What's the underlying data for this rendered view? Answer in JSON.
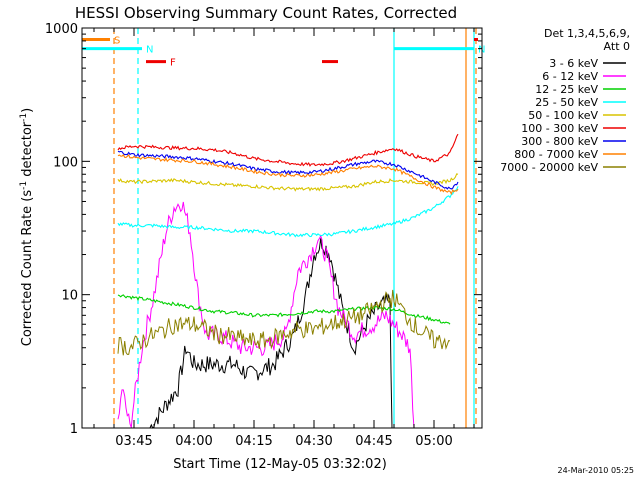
{
  "title": "HESSI Observing Summary Count Rates, Corrected",
  "footer_date": "24-Mar-2010 05:25",
  "chart_data": {
    "type": "line",
    "title": "HESSI Observing Summary Count Rates, Corrected",
    "xlabel": "Start Time (12-May-05 03:32:02)",
    "ylabel_pre": "Corrected Count Rate (s",
    "ylabel_mid": " detector",
    "ylabel_post": ")",
    "ylabel_exp": "-1",
    "yscale": "log",
    "ylim": [
      1,
      1000
    ],
    "xlim": [
      "03:32",
      "05:12"
    ],
    "x_ticks": [
      "03:45",
      "04:00",
      "04:15",
      "04:30",
      "04:45",
      "05:00"
    ],
    "y_ticks": [
      "1",
      "10",
      "100",
      "1000"
    ],
    "legend_header": [
      "Det 1,3,4,5,6,9,",
      "Att 0"
    ],
    "series": [
      {
        "name": "3 - 6 keV",
        "color": "#000000",
        "points": [
          [
            "03:49",
            1
          ],
          [
            "03:53",
            1.5
          ],
          [
            "03:56",
            2
          ],
          [
            "03:58",
            4
          ],
          [
            "04:00",
            3
          ],
          [
            "04:02",
            3
          ],
          [
            "04:05",
            3
          ],
          [
            "04:10",
            3
          ],
          [
            "04:14",
            2.5
          ],
          [
            "04:20",
            3
          ],
          [
            "04:25",
            5
          ],
          [
            "04:28",
            10
          ],
          [
            "04:30",
            20
          ],
          [
            "04:32",
            25
          ],
          [
            "04:34",
            20
          ],
          [
            "04:37",
            8
          ],
          [
            "04:40",
            4
          ],
          [
            "04:43",
            6
          ],
          [
            "04:46",
            8
          ],
          [
            "04:49",
            9
          ],
          [
            "04:49.5",
            1
          ]
        ]
      },
      {
        "name": "6 - 12 keV",
        "color": "#ff00ff",
        "points": [
          [
            "03:41",
            1
          ],
          [
            "03:42",
            2
          ],
          [
            "03:44",
            1
          ],
          [
            "03:47",
            4
          ],
          [
            "03:50",
            10
          ],
          [
            "03:53",
            30
          ],
          [
            "03:55",
            45
          ],
          [
            "03:57",
            50
          ],
          [
            "03:59",
            30
          ],
          [
            "04:01",
            10
          ],
          [
            "04:03",
            5
          ],
          [
            "04:06",
            5
          ],
          [
            "04:12",
            4
          ],
          [
            "04:18",
            4
          ],
          [
            "04:23",
            5
          ],
          [
            "04:26",
            15
          ],
          [
            "04:29",
            20
          ],
          [
            "04:31",
            26
          ],
          [
            "04:33",
            20
          ],
          [
            "04:36",
            8
          ],
          [
            "04:40",
            5
          ],
          [
            "04:45",
            6
          ],
          [
            "04:48",
            7
          ],
          [
            "04:52",
            5
          ],
          [
            "04:54",
            4
          ],
          [
            "04:55",
            1
          ]
        ]
      },
      {
        "name": "12 - 25 keV",
        "color": "#00d000",
        "points": [
          [
            "03:41",
            10
          ],
          [
            "03:45",
            9.5
          ],
          [
            "03:50",
            9
          ],
          [
            "03:55",
            8.5
          ],
          [
            "04:00",
            8
          ],
          [
            "04:05",
            7.5
          ],
          [
            "04:10",
            7.3
          ],
          [
            "04:15",
            7
          ],
          [
            "04:20",
            7
          ],
          [
            "04:25",
            7.2
          ],
          [
            "04:30",
            7.5
          ],
          [
            "04:35",
            7.5
          ],
          [
            "04:40",
            7.8
          ],
          [
            "04:45",
            8
          ],
          [
            "04:50",
            7.8
          ],
          [
            "04:55",
            7
          ],
          [
            "05:00",
            6.5
          ],
          [
            "05:04",
            6
          ]
        ]
      },
      {
        "name": "25 - 50 keV",
        "color": "#00ffff",
        "points": [
          [
            "03:41",
            34
          ],
          [
            "03:45",
            33
          ],
          [
            "03:50",
            33
          ],
          [
            "03:55",
            32
          ],
          [
            "04:00",
            32
          ],
          [
            "04:05",
            31
          ],
          [
            "04:10",
            30
          ],
          [
            "04:15",
            30
          ],
          [
            "04:20",
            29
          ],
          [
            "04:25",
            28
          ],
          [
            "04:30",
            28
          ],
          [
            "04:35",
            28.5
          ],
          [
            "04:40",
            30
          ],
          [
            "04:45",
            32
          ],
          [
            "04:50",
            34
          ],
          [
            "04:55",
            38
          ],
          [
            "05:00",
            45
          ],
          [
            "05:04",
            55
          ],
          [
            "05:06",
            65
          ]
        ]
      },
      {
        "name": "50 - 100 keV",
        "color": "#d8c400",
        "points": [
          [
            "03:41",
            72
          ],
          [
            "03:45",
            70
          ],
          [
            "03:50",
            71
          ],
          [
            "03:55",
            72
          ],
          [
            "04:00",
            70
          ],
          [
            "04:05",
            68
          ],
          [
            "04:10",
            66
          ],
          [
            "04:15",
            65
          ],
          [
            "04:20",
            63
          ],
          [
            "04:25",
            62
          ],
          [
            "04:30",
            62
          ],
          [
            "04:35",
            63
          ],
          [
            "04:40",
            65
          ],
          [
            "04:45",
            70
          ],
          [
            "04:50",
            72
          ],
          [
            "04:55",
            70
          ],
          [
            "05:00",
            68
          ],
          [
            "05:04",
            72
          ],
          [
            "05:06",
            80
          ]
        ]
      },
      {
        "name": "100 - 300 keV",
        "color": "#ee0000",
        "points": [
          [
            "03:41",
            125
          ],
          [
            "03:45",
            130
          ],
          [
            "03:50",
            128
          ],
          [
            "03:55",
            126
          ],
          [
            "04:00",
            125
          ],
          [
            "04:05",
            122
          ],
          [
            "04:10",
            115
          ],
          [
            "04:15",
            105
          ],
          [
            "04:20",
            100
          ],
          [
            "04:25",
            96
          ],
          [
            "04:30",
            94
          ],
          [
            "04:35",
            97
          ],
          [
            "04:40",
            105
          ],
          [
            "04:45",
            115
          ],
          [
            "04:50",
            125
          ],
          [
            "04:55",
            110
          ],
          [
            "05:00",
            100
          ],
          [
            "05:04",
            115
          ],
          [
            "05:06",
            160
          ]
        ]
      },
      {
        "name": "300 - 800 keV",
        "color": "#0000ee",
        "points": [
          [
            "03:41",
            118
          ],
          [
            "03:45",
            112
          ],
          [
            "03:50",
            110
          ],
          [
            "03:55",
            108
          ],
          [
            "04:00",
            105
          ],
          [
            "04:05",
            100
          ],
          [
            "04:10",
            95
          ],
          [
            "04:15",
            88
          ],
          [
            "04:20",
            84
          ],
          [
            "04:25",
            82
          ],
          [
            "04:30",
            83
          ],
          [
            "04:35",
            88
          ],
          [
            "04:40",
            95
          ],
          [
            "04:45",
            100
          ],
          [
            "04:50",
            95
          ],
          [
            "04:55",
            82
          ],
          [
            "05:00",
            70
          ],
          [
            "05:04",
            62
          ],
          [
            "05:06",
            70
          ]
        ]
      },
      {
        "name": "800 - 7000 keV",
        "color": "#ff8000",
        "points": [
          [
            "03:41",
            112
          ],
          [
            "03:45",
            107
          ],
          [
            "03:50",
            104
          ],
          [
            "03:55",
            102
          ],
          [
            "04:00",
            100
          ],
          [
            "04:05",
            95
          ],
          [
            "04:10",
            90
          ],
          [
            "04:15",
            84
          ],
          [
            "04:20",
            80
          ],
          [
            "04:25",
            78
          ],
          [
            "04:30",
            79
          ],
          [
            "04:35",
            83
          ],
          [
            "04:40",
            88
          ],
          [
            "04:45",
            92
          ],
          [
            "04:50",
            88
          ],
          [
            "04:55",
            75
          ],
          [
            "05:00",
            64
          ],
          [
            "05:04",
            58
          ],
          [
            "05:06",
            62
          ]
        ]
      },
      {
        "name": "7000 - 20000 keV",
        "color": "#8b8000",
        "points": [
          [
            "03:41",
            4.2
          ],
          [
            "03:44",
            4
          ],
          [
            "03:47",
            4.5
          ],
          [
            "03:50",
            5
          ],
          [
            "03:53",
            5.5
          ],
          [
            "03:55",
            6
          ],
          [
            "03:58",
            6
          ],
          [
            "04:00",
            6
          ],
          [
            "04:03",
            5.5
          ],
          [
            "04:06",
            5
          ],
          [
            "04:10",
            4.8
          ],
          [
            "04:14",
            4.5
          ],
          [
            "04:18",
            4.5
          ],
          [
            "04:22",
            5
          ],
          [
            "04:26",
            5.5
          ],
          [
            "04:30",
            5.5
          ],
          [
            "04:34",
            6
          ],
          [
            "04:38",
            6.5
          ],
          [
            "04:42",
            7
          ],
          [
            "04:45",
            8
          ],
          [
            "04:48",
            9
          ],
          [
            "04:50",
            9.5
          ],
          [
            "04:53",
            7
          ],
          [
            "04:56",
            5.5
          ],
          [
            "04:58",
            5
          ],
          [
            "05:00",
            4.5
          ],
          [
            "05:04",
            4.5
          ]
        ]
      }
    ],
    "flags": [
      {
        "label": "S",
        "color": "#ff8000",
        "start": "03:32",
        "end": "03:39",
        "value": 820
      },
      {
        "label": "N",
        "color": "#00ffff",
        "start": "03:32",
        "end": "03:47",
        "value": 700
      },
      {
        "label": "N",
        "color": "#00ffff",
        "start": "04:50",
        "end": "05:10",
        "value": 700
      },
      {
        "label": "F",
        "color": "#ee0000",
        "start": "03:48",
        "end": "03:53",
        "value": 560
      },
      {
        "label": "",
        "color": "#ee0000",
        "start": "04:32",
        "end": "04:36",
        "value": 560
      },
      {
        "label": "",
        "color": "#ee0000",
        "start": "05:10",
        "end": "05:11",
        "value": 820
      }
    ],
    "vlines": [
      {
        "time": "03:40",
        "color": "#ff8000",
        "style": "dashed"
      },
      {
        "time": "03:46",
        "color": "#00ffff",
        "style": "dashed"
      },
      {
        "time": "04:50",
        "color": "#00ffff",
        "style": "solid"
      },
      {
        "time": "05:08",
        "color": "#ff8000",
        "style": "solid"
      },
      {
        "time": "05:10",
        "color": "#00ffff",
        "style": "solid"
      },
      {
        "time": "05:10.5",
        "color": "#ff8000",
        "style": "dashed"
      }
    ]
  }
}
